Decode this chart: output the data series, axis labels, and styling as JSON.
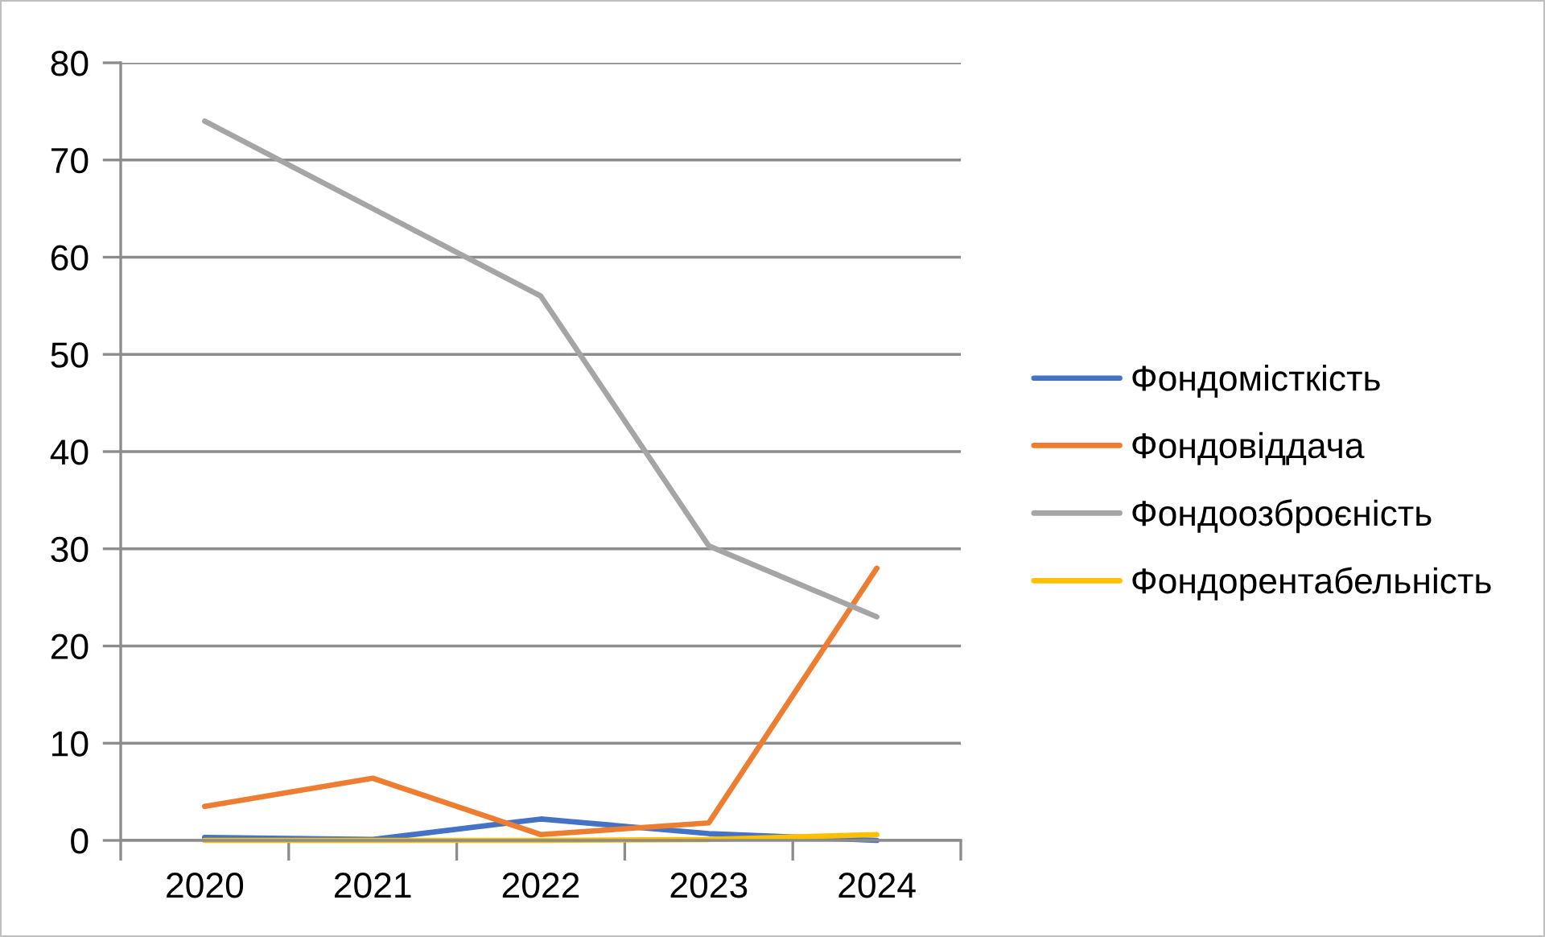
{
  "chart_data": {
    "type": "line",
    "categories": [
      "2020",
      "2021",
      "2022",
      "2023",
      "2024"
    ],
    "series": [
      {
        "name": "Фондомісткість",
        "color": "#4472c4",
        "values": [
          0.3,
          0.1,
          2.2,
          0.7,
          0
        ]
      },
      {
        "name": "Фондовіддача",
        "color": "#ed7d31",
        "values": [
          3.5,
          6.4,
          0.6,
          1.8,
          28
        ]
      },
      {
        "name": "Фондоозброєність",
        "color": "#a5a5a5",
        "values": [
          74,
          65,
          56,
          30.3,
          23
        ]
      },
      {
        "name": "Фондорентабельність",
        "color": "#ffc000",
        "values": [
          0,
          0,
          0,
          0.1,
          0.6
        ]
      }
    ],
    "ylim": [
      0,
      80
    ],
    "yticks": [
      0,
      10,
      20,
      30,
      40,
      50,
      60,
      70,
      80
    ],
    "grid": "y",
    "legend": "right",
    "line_style": "solid"
  }
}
